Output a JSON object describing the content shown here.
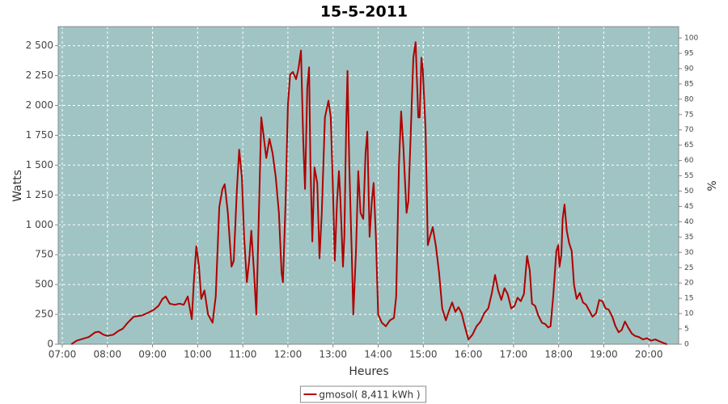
{
  "chart_data": {
    "type": "line",
    "title": "15-5-2011",
    "x_label": "Heures",
    "y_label": "Watts",
    "y2_label": "%",
    "xlim": [
      6.91,
      20.66
    ],
    "xticks": [
      {
        "value": 7,
        "label": "07:00"
      },
      {
        "value": 8,
        "label": "08:00"
      },
      {
        "value": 9,
        "label": "09:00"
      },
      {
        "value": 10,
        "label": "10:00"
      },
      {
        "value": 11,
        "label": "11:00"
      },
      {
        "value": 12,
        "label": "12:00"
      },
      {
        "value": 13,
        "label": "13:00"
      },
      {
        "value": 14,
        "label": "14:00"
      },
      {
        "value": 15,
        "label": "15:00"
      },
      {
        "value": 16,
        "label": "16:00"
      },
      {
        "value": 17,
        "label": "17:00"
      },
      {
        "value": 18,
        "label": "18:00"
      },
      {
        "value": 19,
        "label": "19:00"
      },
      {
        "value": 20,
        "label": "20:00"
      }
    ],
    "ylim": [
      0,
      2660
    ],
    "yticks": [
      0,
      250,
      500,
      750,
      {
        "value": 1000,
        "label": "1 000"
      },
      {
        "value": 1250,
        "label": "1 250"
      },
      {
        "value": 1500,
        "label": "1 500"
      },
      {
        "value": 1750,
        "label": "1 750"
      },
      {
        "value": 2000,
        "label": "2 000"
      },
      {
        "value": 2250,
        "label": "2 250"
      },
      {
        "value": 2500,
        "label": "2 500"
      }
    ],
    "y2lim": [
      0,
      103.7
    ],
    "y2ticks": [
      0,
      5,
      10,
      15,
      20,
      25,
      30,
      35,
      40,
      45,
      50,
      55,
      60,
      65,
      70,
      75,
      80,
      85,
      90,
      95,
      100
    ],
    "grid": true,
    "background": "#9fc4c3",
    "x": [
      7.2,
      7.32,
      7.41,
      7.59,
      7.73,
      7.81,
      7.91,
      8.0,
      8.13,
      8.24,
      8.34,
      8.45,
      8.58,
      8.76,
      8.88,
      9.03,
      9.13,
      9.22,
      9.29,
      9.38,
      9.49,
      9.6,
      9.69,
      9.78,
      9.87,
      9.92,
      9.97,
      10.03,
      10.08,
      10.15,
      10.23,
      10.33,
      10.4,
      10.48,
      10.55,
      10.6,
      10.67,
      10.75,
      10.8,
      10.87,
      10.92,
      10.98,
      11.03,
      11.09,
      11.14,
      11.19,
      11.25,
      11.3,
      11.35,
      11.41,
      11.46,
      11.52,
      11.59,
      11.66,
      11.73,
      11.8,
      11.86,
      11.89,
      11.95,
      12.0,
      12.05,
      12.11,
      12.18,
      12.23,
      12.29,
      12.34,
      12.38,
      12.43,
      12.47,
      12.5,
      12.54,
      12.59,
      12.65,
      12.7,
      12.75,
      12.82,
      12.9,
      12.95,
      12.99,
      13.04,
      13.09,
      13.13,
      13.16,
      13.22,
      13.25,
      13.29,
      13.32,
      13.36,
      13.42,
      13.45,
      13.51,
      13.56,
      13.61,
      13.67,
      13.72,
      13.76,
      13.81,
      13.86,
      13.9,
      13.95,
      14.0,
      14.08,
      14.17,
      14.26,
      14.35,
      14.4,
      14.46,
      14.51,
      14.56,
      14.63,
      14.67,
      14.72,
      14.78,
      14.83,
      14.89,
      14.92,
      14.96,
      14.99,
      15.05,
      15.1,
      15.15,
      15.21,
      15.28,
      15.35,
      15.42,
      15.5,
      15.57,
      15.64,
      15.71,
      15.78,
      15.85,
      15.92,
      16.0,
      16.09,
      16.18,
      16.27,
      16.35,
      16.44,
      16.52,
      16.59,
      16.66,
      16.73,
      16.8,
      16.87,
      16.95,
      17.02,
      17.09,
      17.16,
      17.23,
      17.3,
      17.36,
      17.41,
      17.48,
      17.55,
      17.63,
      17.7,
      17.77,
      17.82,
      17.88,
      17.95,
      17.99,
      18.02,
      18.06,
      18.09,
      18.13,
      18.18,
      18.23,
      18.29,
      18.34,
      18.4,
      18.47,
      18.54,
      18.61,
      18.68,
      18.75,
      18.83,
      18.9,
      18.97,
      19.04,
      19.11,
      19.19,
      19.26,
      19.33,
      19.4,
      19.47,
      19.54,
      19.62,
      19.69,
      19.78,
      19.87,
      19.96,
      20.05,
      20.14,
      20.23,
      20.32,
      20.4
    ],
    "series": [
      {
        "name": "gmosol( 8,411 kWh )",
        "color": "#b00000",
        "values": [
          0,
          30,
          40,
          60,
          100,
          105,
          80,
          70,
          80,
          110,
          130,
          180,
          230,
          240,
          260,
          290,
          320,
          380,
          400,
          340,
          330,
          340,
          330,
          400,
          210,
          550,
          820,
          650,
          380,
          450,
          250,
          180,
          400,
          1150,
          1300,
          1340,
          1100,
          650,
          700,
          1300,
          1630,
          1400,
          900,
          520,
          700,
          950,
          600,
          250,
          1000,
          1900,
          1750,
          1560,
          1720,
          1600,
          1400,
          1100,
          600,
          520,
          1200,
          2000,
          2260,
          2280,
          2220,
          2300,
          2460,
          1700,
          1300,
          2150,
          2320,
          1500,
          860,
          1480,
          1350,
          720,
          1100,
          1900,
          2040,
          1900,
          1400,
          700,
          1200,
          1450,
          1250,
          650,
          900,
          1800,
          2290,
          1500,
          700,
          250,
          800,
          1450,
          1100,
          1050,
          1600,
          1780,
          900,
          1200,
          1350,
          900,
          250,
          180,
          150,
          200,
          220,
          400,
          1500,
          1950,
          1650,
          1100,
          1200,
          1750,
          2400,
          2530,
          1900,
          1900,
          2400,
          2300,
          1800,
          830,
          900,
          980,
          820,
          600,
          300,
          200,
          280,
          350,
          270,
          310,
          260,
          150,
          40,
          80,
          150,
          190,
          260,
          300,
          430,
          580,
          450,
          370,
          470,
          420,
          300,
          320,
          390,
          360,
          420,
          740,
          620,
          340,
          320,
          240,
          180,
          170,
          140,
          150,
          400,
          780,
          830,
          650,
          750,
          1050,
          1170,
          950,
          850,
          780,
          500,
          380,
          430,
          350,
          330,
          280,
          230,
          260,
          370,
          360,
          300,
          290,
          230,
          150,
          100,
          120,
          190,
          140,
          90,
          70,
          60,
          40,
          50,
          30,
          40,
          25,
          10,
          0
        ]
      }
    ]
  }
}
